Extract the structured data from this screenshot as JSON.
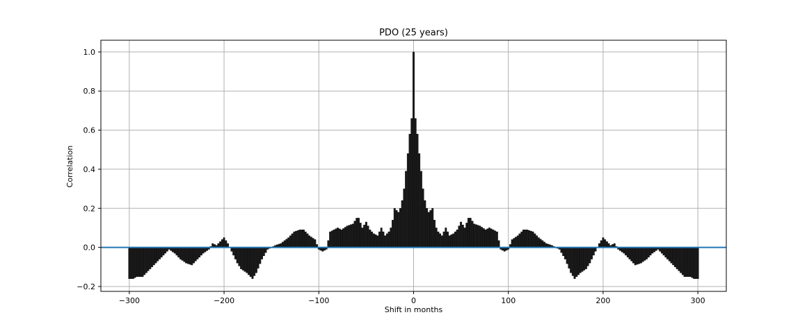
{
  "chart_data": {
    "type": "bar",
    "title": "PDO (25 years)",
    "xlabel": "Shift in months",
    "ylabel": "Correlation",
    "xlim": [
      -330,
      330
    ],
    "ylim": [
      -0.225,
      1.06
    ],
    "xticks": [
      -300,
      -200,
      -100,
      0,
      100,
      200,
      300
    ],
    "yticks": [
      -0.2,
      0.0,
      0.2,
      0.4,
      0.6,
      0.8,
      1.0
    ],
    "xtick_labels": [
      "−300",
      "−200",
      "−100",
      "0",
      "100",
      "200",
      "300"
    ],
    "ytick_labels": [
      "−0.2",
      "0.0",
      "0.2",
      "0.4",
      "0.6",
      "0.8",
      "1.0"
    ],
    "grid": true,
    "bar_color": "#1a1a1a",
    "baseline": {
      "y": 0.0,
      "color": "#1f77b4"
    },
    "x_step": 2,
    "series": [
      {
        "anchors_x": [
          0,
          1,
          2,
          4,
          6,
          8,
          10,
          12,
          14,
          16,
          18,
          20,
          22,
          24,
          26,
          30,
          34,
          38,
          42,
          46,
          50,
          54,
          58,
          60,
          64,
          70,
          76,
          80,
          84,
          88,
          92,
          96,
          100,
          104,
          110,
          116,
          120,
          126,
          132,
          140,
          146,
          150,
          154,
          160,
          166,
          170,
          176,
          182,
          186,
          192,
          196,
          200,
          204,
          208,
          212,
          216,
          222,
          228,
          234,
          240,
          246,
          252,
          258,
          264,
          270,
          276,
          280,
          286,
          292,
          296,
          300
        ],
        "anchors_y": [
          1.0,
          0.77,
          0.66,
          0.58,
          0.48,
          0.39,
          0.3,
          0.24,
          0.2,
          0.18,
          0.19,
          0.2,
          0.14,
          0.1,
          0.08,
          0.06,
          0.1,
          0.06,
          0.07,
          0.09,
          0.13,
          0.1,
          0.15,
          0.15,
          0.12,
          0.11,
          0.09,
          0.1,
          0.09,
          0.08,
          -0.01,
          -0.02,
          -0.01,
          0.04,
          0.06,
          0.09,
          0.09,
          0.08,
          0.05,
          0.02,
          0.01,
          0.0,
          -0.01,
          -0.06,
          -0.13,
          -0.16,
          -0.13,
          -0.11,
          -0.08,
          -0.02,
          0.02,
          0.05,
          0.03,
          0.01,
          0.02,
          -0.01,
          -0.03,
          -0.06,
          -0.09,
          -0.08,
          -0.06,
          -0.03,
          -0.01,
          -0.04,
          -0.07,
          -0.1,
          -0.12,
          -0.15,
          -0.15,
          -0.16,
          -0.16
        ],
        "symmetric": true
      }
    ]
  }
}
